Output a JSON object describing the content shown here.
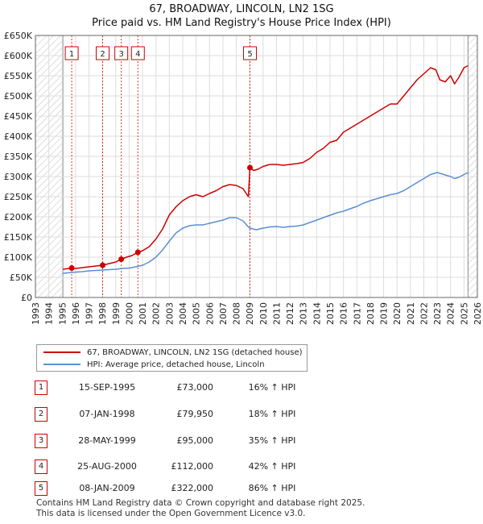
{
  "title": "67, BROADWAY, LINCOLN, LN2 1SG",
  "subtitle": "Price paid vs. HM Land Registry's House Price Index (HPI)",
  "legend": {
    "property_label": "67, BROADWAY, LINCOLN, LN2 1SG (detached house)",
    "hpi_label": "HPI: Average price, detached house, Lincoln"
  },
  "colors": {
    "property": "#cc0000",
    "hpi": "#5b8fd0",
    "hatch": "#cccccc",
    "grid": "#dddddd"
  },
  "sales": [
    {
      "num": "1",
      "date": "15-SEP-1995",
      "price": "£73,000",
      "hpi": "16% ↑ HPI"
    },
    {
      "num": "2",
      "date": "07-JAN-1998",
      "price": "£79,950",
      "hpi": "18% ↑ HPI"
    },
    {
      "num": "3",
      "date": "28-MAY-1999",
      "price": "£95,000",
      "hpi": "35% ↑ HPI"
    },
    {
      "num": "4",
      "date": "25-AUG-2000",
      "price": "£112,000",
      "hpi": "42% ↑ HPI"
    },
    {
      "num": "5",
      "date": "08-JAN-2009",
      "price": "£322,000",
      "hpi": "86% ↑ HPI"
    }
  ],
  "footer": {
    "line1": "Contains HM Land Registry data © Crown copyright and database right 2025.",
    "line2": "This data is licensed under the Open Government Licence v3.0."
  },
  "chart_data": {
    "type": "line",
    "title": "67, BROADWAY, LINCOLN, LN2 1SG",
    "subtitle": "Price paid vs. HM Land Registry's House Price Index (HPI)",
    "xlabel": "",
    "ylabel": "",
    "xlim": [
      1993,
      2026
    ],
    "ylim": [
      0,
      650000
    ],
    "x_ticks": [
      1993,
      1994,
      1995,
      1996,
      1997,
      1998,
      1999,
      2000,
      2001,
      2002,
      2003,
      2004,
      2005,
      2006,
      2007,
      2008,
      2009,
      2010,
      2011,
      2012,
      2013,
      2014,
      2015,
      2016,
      2017,
      2018,
      2019,
      2020,
      2021,
      2022,
      2023,
      2024,
      2025,
      2026
    ],
    "y_ticks": [
      0,
      50000,
      100000,
      150000,
      200000,
      250000,
      300000,
      350000,
      400000,
      450000,
      500000,
      550000,
      600000,
      650000
    ],
    "y_tick_labels": [
      "£0",
      "£50K",
      "£100K",
      "£150K",
      "£200K",
      "£250K",
      "£300K",
      "£350K",
      "£400K",
      "£450K",
      "£500K",
      "£550K",
      "£600K",
      "£650K"
    ],
    "hatched_ranges": [
      [
        1993,
        1995.05
      ],
      [
        2025.3,
        2026
      ]
    ],
    "sale_markers": [
      {
        "label": "1",
        "x": 1995.71,
        "y": 73000
      },
      {
        "label": "2",
        "x": 1998.02,
        "y": 79950
      },
      {
        "label": "3",
        "x": 1999.41,
        "y": 95000
      },
      {
        "label": "4",
        "x": 2000.65,
        "y": 112000
      },
      {
        "label": "5",
        "x": 2009.02,
        "y": 322000
      }
    ],
    "series": [
      {
        "name": "67, BROADWAY, LINCOLN, LN2 1SG (detached house)",
        "x": [
          1995.05,
          1995.71,
          1996.0,
          1996.5,
          1997.0,
          1997.5,
          1998.02,
          1998.5,
          1999.0,
          1999.41,
          1999.8,
          2000.2,
          2000.65,
          2001.0,
          2001.5,
          2002.0,
          2002.5,
          2003.0,
          2003.5,
          2004.0,
          2004.5,
          2005.0,
          2005.5,
          2006.0,
          2006.5,
          2007.0,
          2007.5,
          2008.0,
          2008.5,
          2008.9,
          2009.02,
          2009.3,
          2009.6,
          2010.0,
          2010.5,
          2011.0,
          2011.5,
          2012.0,
          2012.5,
          2013.0,
          2013.5,
          2014.0,
          2014.5,
          2015.0,
          2015.5,
          2016.0,
          2016.5,
          2017.0,
          2017.5,
          2018.0,
          2018.5,
          2019.0,
          2019.5,
          2020.0,
          2020.5,
          2021.0,
          2021.5,
          2022.0,
          2022.5,
          2022.9,
          2023.2,
          2023.6,
          2024.0,
          2024.3,
          2024.6,
          2025.0,
          2025.3
        ],
        "values": [
          70000,
          73000,
          72000,
          74000,
          76000,
          78000,
          79950,
          84000,
          88000,
          95000,
          100000,
          104000,
          112000,
          116000,
          126000,
          145000,
          170000,
          205000,
          225000,
          240000,
          250000,
          255000,
          250000,
          258000,
          265000,
          275000,
          280000,
          278000,
          270000,
          250000,
          322000,
          315000,
          318000,
          325000,
          330000,
          330000,
          328000,
          330000,
          332000,
          335000,
          345000,
          360000,
          370000,
          385000,
          390000,
          410000,
          420000,
          430000,
          440000,
          450000,
          460000,
          470000,
          480000,
          480000,
          500000,
          520000,
          540000,
          555000,
          570000,
          565000,
          540000,
          535000,
          550000,
          530000,
          545000,
          570000,
          575000
        ]
      },
      {
        "name": "HPI: Average price, detached house, Lincoln",
        "x": [
          1995.05,
          1995.71,
          1996.0,
          1996.5,
          1997.0,
          1997.5,
          1998.0,
          1998.5,
          1999.0,
          1999.5,
          2000.0,
          2000.5,
          2001.0,
          2001.5,
          2002.0,
          2002.5,
          2003.0,
          2003.5,
          2004.0,
          2004.5,
          2005.0,
          2005.5,
          2006.0,
          2006.5,
          2007.0,
          2007.5,
          2008.0,
          2008.5,
          2008.9,
          2009.0,
          2009.5,
          2010.0,
          2010.5,
          2011.0,
          2011.5,
          2012.0,
          2012.5,
          2013.0,
          2013.5,
          2014.0,
          2014.5,
          2015.0,
          2015.5,
          2016.0,
          2016.5,
          2017.0,
          2017.5,
          2018.0,
          2018.5,
          2019.0,
          2019.5,
          2020.0,
          2020.5,
          2021.0,
          2021.5,
          2022.0,
          2022.5,
          2023.0,
          2023.5,
          2024.0,
          2024.3,
          2024.6,
          2025.0,
          2025.3
        ],
        "values": [
          60000,
          62000,
          63000,
          64000,
          66000,
          67000,
          68000,
          69000,
          70000,
          72000,
          73000,
          76000,
          80000,
          88000,
          100000,
          118000,
          140000,
          160000,
          172000,
          178000,
          180000,
          180000,
          184000,
          188000,
          192000,
          198000,
          198000,
          190000,
          175000,
          172000,
          168000,
          172000,
          175000,
          176000,
          174000,
          176000,
          177000,
          180000,
          186000,
          192000,
          198000,
          204000,
          210000,
          214000,
          220000,
          226000,
          234000,
          240000,
          245000,
          250000,
          255000,
          258000,
          265000,
          275000,
          285000,
          295000,
          305000,
          310000,
          305000,
          300000,
          295000,
          298000,
          305000,
          310000
        ]
      }
    ]
  }
}
